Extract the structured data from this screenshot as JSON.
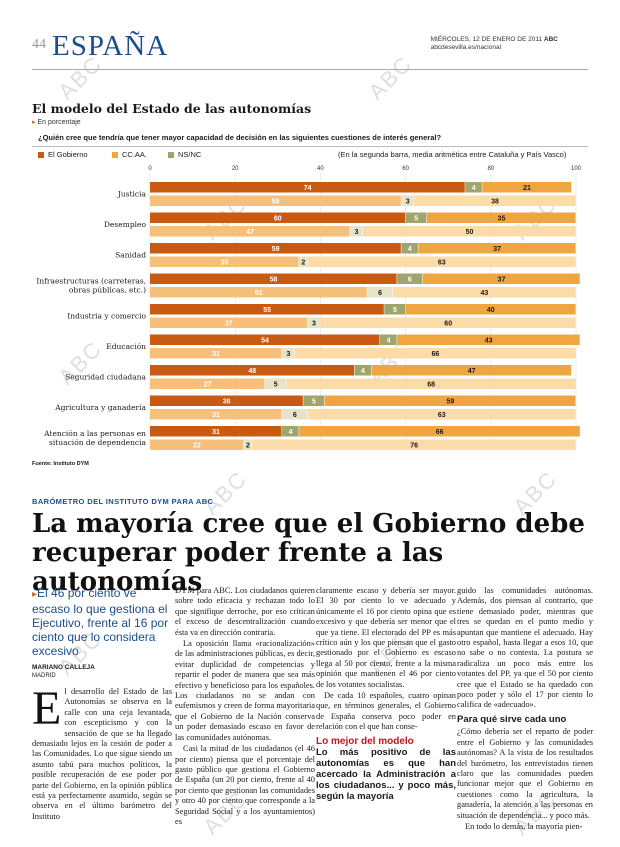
{
  "header": {
    "page_number": "44",
    "section": "ESPAÑA",
    "date": "MIÉRCOLES, 12 DE ENERO DE 2011",
    "brand": "ABC",
    "url": "abcdesevilla.es/nacional"
  },
  "watermark": "ABC",
  "chart_data": {
    "type": "bar",
    "title": "El modelo del Estado de las autonomías",
    "subtitle": "En porcentaje",
    "question": "¿Quién cree que tendría que tener mayor capacidad de decisión en las siguientes cuestiones de interés general?",
    "note": "(En la segunda barra, media aritmética entre Cataluña y País Vasco)",
    "source": "Fuente: Instituto DYM",
    "xlim": [
      0,
      100
    ],
    "ticks": [
      "0",
      "20",
      "40",
      "60",
      "80",
      "100"
    ],
    "series": [
      {
        "name": "El Gobierno",
        "color": "#c85a12"
      },
      {
        "name": "CC.AA.",
        "color": "#f0a640"
      },
      {
        "name": "NS/NC",
        "color": "#9fa56b"
      }
    ],
    "categories": [
      {
        "label": [
          "Justicia"
        ],
        "bar1": [
          74,
          4,
          21
        ],
        "bar2": [
          59,
          3,
          38
        ]
      },
      {
        "label": [
          "Desempleo"
        ],
        "bar1": [
          60,
          5,
          35
        ],
        "bar2": [
          47,
          3,
          50
        ]
      },
      {
        "label": [
          "Sanidad"
        ],
        "bar1": [
          59,
          4,
          37
        ],
        "bar2": [
          35,
          2,
          63
        ]
      },
      {
        "label": [
          "Infraestructuras (carreteras,",
          "obras públicas, etc.)"
        ],
        "bar1": [
          58,
          6,
          37
        ],
        "bar2": [
          51,
          6,
          43
        ]
      },
      {
        "label": [
          "Industria y comercio"
        ],
        "bar1": [
          55,
          5,
          40
        ],
        "bar2": [
          37,
          3,
          60
        ]
      },
      {
        "label": [
          "Educación"
        ],
        "bar1": [
          54,
          4,
          43
        ],
        "bar2": [
          31,
          3,
          66
        ]
      },
      {
        "label": [
          "Seguridad ciudadana"
        ],
        "bar1": [
          48,
          4,
          47
        ],
        "bar2": [
          27,
          5,
          68
        ]
      },
      {
        "label": [
          "Agricultura y ganadería"
        ],
        "bar1": [
          36,
          5,
          59
        ],
        "bar2": [
          31,
          6,
          63
        ]
      },
      {
        "label": [
          "Atención a las personas en",
          "situación de dependencia"
        ],
        "bar1": [
          31,
          4,
          66
        ],
        "bar2": [
          22,
          2,
          76
        ]
      }
    ]
  },
  "article": {
    "kicker": "BARÓMETRO DEL INSTITUTO DYM PARA ABC",
    "headline": "La mayoría cree que el Gobierno debe recuperar poder frente a las autonomías",
    "standfirst": "El 46 por ciento ve escaso lo que gestiona el Ejecutivo, frente al 16 por ciento que lo considera excesivo",
    "author": "MARIANO CALLEJA",
    "city": "MADRID",
    "dropcap": "E",
    "col1_body": "l desarrollo del Estado de las Autonomías se observa en la calle con una ceja levantada, con escepticismo y con la sensación de que se ha llegado demasiado lejos en la cesión de poder a las Comunidades. Lo que sigue siendo un asunto tabú para muchos políticos, la posible recuperación de ese poder por parte del Gobierno, en la opinión pública está ya perfectamente asumido, según se observa en el último barómetro del Instituto",
    "col2": [
      "DYM para ABC. Los ciudadanos quieren sobre todo eficacia y rechazan todo lo que signifique derroche, por eso critican el exceso de descentralización cuando ésta va en dirección contraria.",
      "La oposición llama «racionalización» de las administraciones públicas, es decir, evitar duplicidad de competencias y repartir el poder de manera que sea más efectivo y beneficioso para los españoles. Los ciudadanos no se andan con eufemismos y creen de forma mayoritaria que el Gobierno de la Nación conserva un poder demasiado escaso en favor de las comunidades autónomas.",
      "Casi la mitad de los ciudadanos (el 46 por ciento) piensa que el porcentaje del gasto público que gestiona el Gobierno de España (un 20 por ciento, frente al 40 por ciento que gestionan las comunidades y otro 40 por ciento que corresponde a la Seguridad Social y a los ayuntamientos) es"
    ],
    "col3": [
      "claramente escaso y debería ser mayor. El 30 por ciento lo ve adecuado y únicamente el 16 por ciento opina que es excesivo y que debería ser menor que el que ya tiene. El electorado del PP es más crítico aún y los que piensan que el gasto gestionado por el Gobierno es escaso llega al 50 por ciento, frente a la misma opinión que mantienen el 46 por ciento de los votantes socialistas.",
      "De cada 10 españoles, cuatro opinan que, en términos generales, el Gobierno de España conserva poco poder en relación con el que han conse-"
    ],
    "col3_subhead": "Lo mejor del modelo",
    "col3_subtext": "Lo más positivo de las autonomías es que han acercado la Administración a los ciudadanos... y poco más, según la mayoría",
    "col4": [
      "guido las comunidades autónomas. Además, dos piensan al contrario, que tiene demasiado poder, mientras que tres se quedan en el punto medio y apuntan que mantiene el adecuado. Hay otro español, hasta llegar a esos 10, que no sabe o no contesta. La postura se radicaliza un poco más entre los votantes del PP, ya que el 50 por ciento cree que el Estado se ha quedado con poco poder y sólo el 17 por ciento lo califica de «adecuado»."
    ],
    "col4_subhead": "Para qué sirve cada uno",
    "col4_b": [
      "¿Cómo debería ser el reparto de poder entre el Gobierno y las comunidades autónomas? A la vista de los resultados del barómetro, los entrevistados tienen claro que las comunidades pueden funcionar mejor que el Gobierno en cuestiones como la agricultura, la ganadería, la atención a las personas en situación de dependencia... y poco más.",
      "En todo lo demás, la mayoría pien-"
    ]
  }
}
